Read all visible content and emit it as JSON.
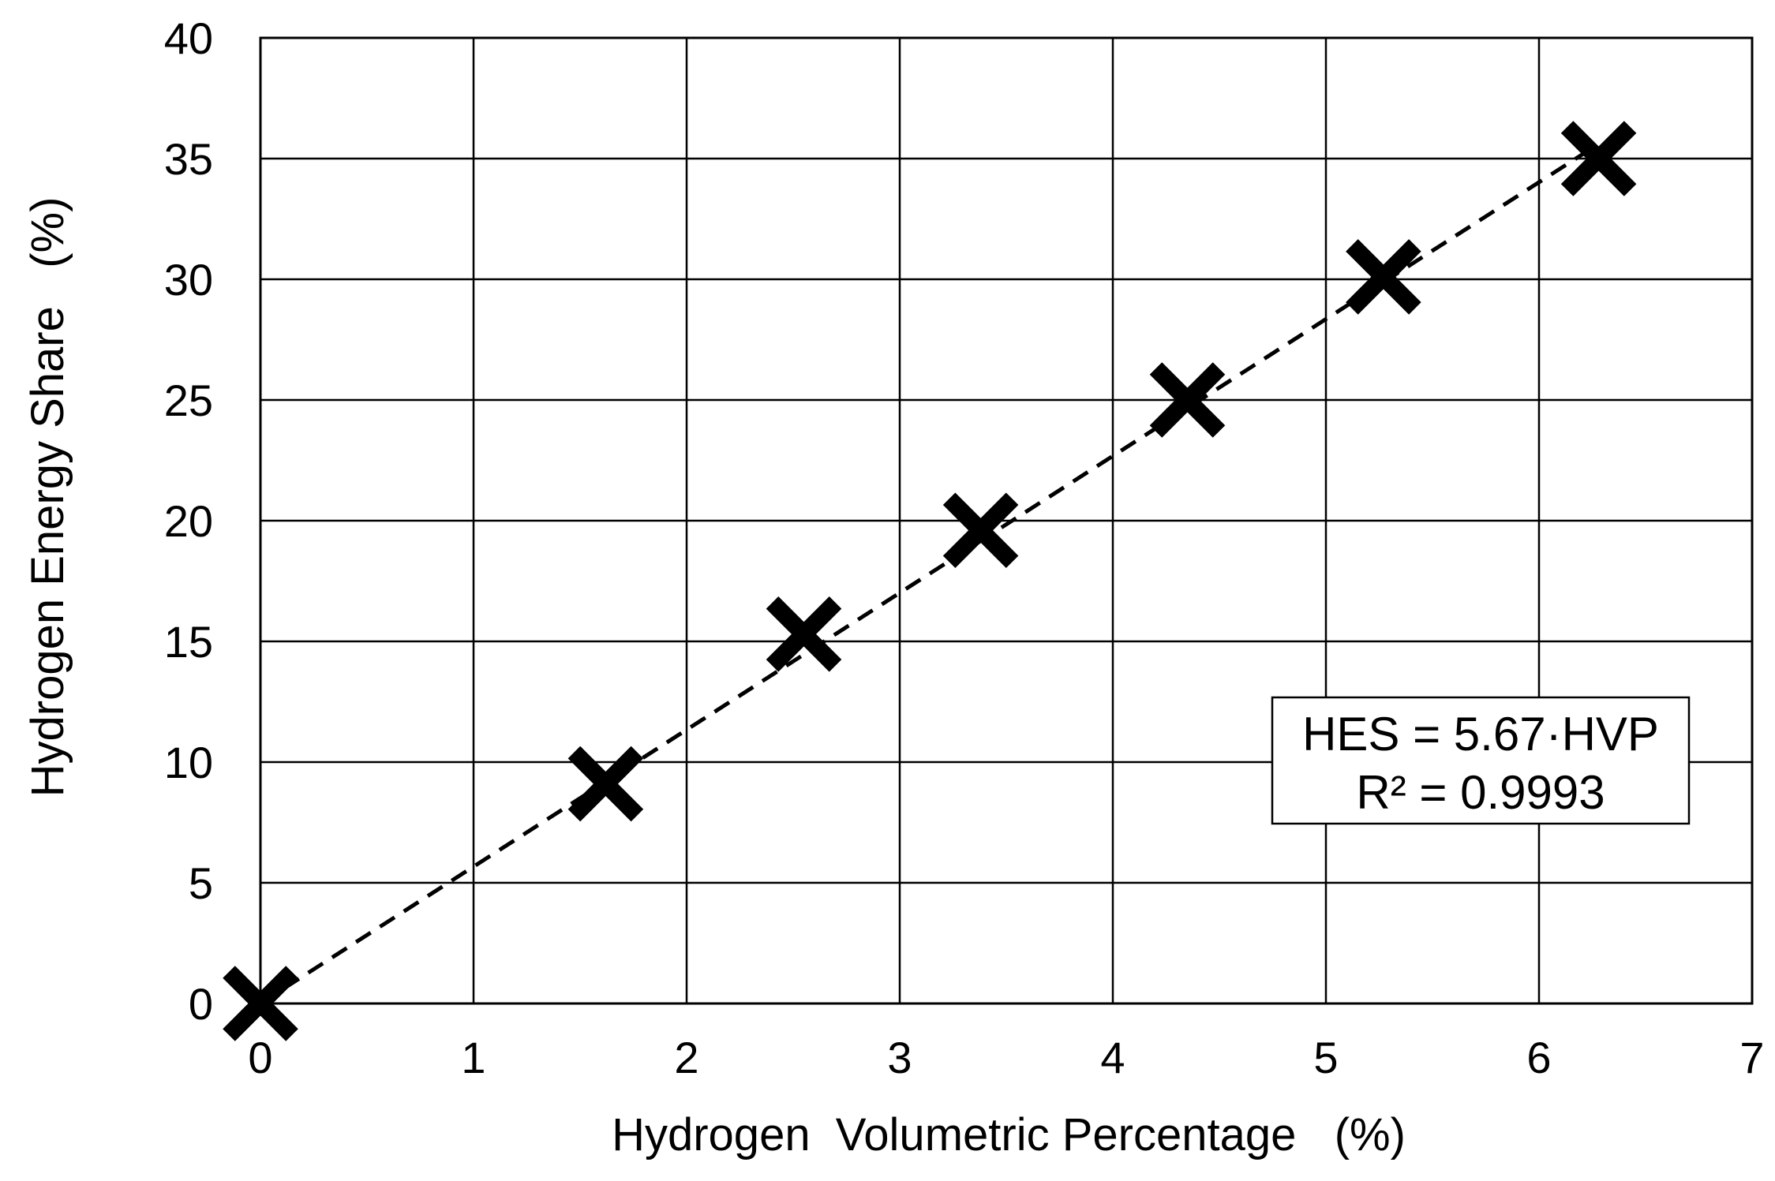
{
  "chart_data": {
    "type": "scatter",
    "title": "",
    "xlabel": "Hydrogen  Volumetric Percentage   (%)",
    "ylabel": "Hydrogen Energy Share   (%)",
    "xlim": [
      0,
      7
    ],
    "ylim": [
      0,
      40
    ],
    "xticks": [
      "0",
      "1",
      "2",
      "3",
      "4",
      "5",
      "6",
      "7"
    ],
    "yticks": [
      "0",
      "5",
      "10",
      "15",
      "20",
      "25",
      "30",
      "35",
      "40"
    ],
    "grid": true,
    "legend": "none",
    "marker": "x",
    "marker_color": "#000000",
    "series": [
      {
        "x": [
          0,
          1.62,
          2.55,
          3.38,
          4.35,
          5.27,
          6.28
        ],
        "y": [
          0,
          9.1,
          15.3,
          19.6,
          25.0,
          30.1,
          35.0
        ]
      }
    ],
    "trendline": {
      "style": "dashed",
      "slope": 5.67,
      "x_range": [
        0,
        6.28
      ]
    },
    "annotation": {
      "line1": "HES = 5.67·HVP",
      "line2": "R² = 0.9993"
    }
  }
}
